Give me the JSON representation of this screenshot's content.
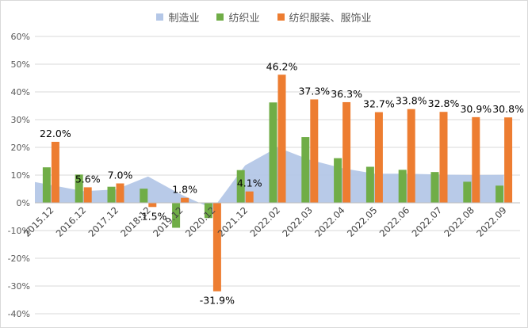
{
  "chart_data": {
    "type": "bar",
    "title": "",
    "xlabel": "",
    "ylabel": "",
    "ylim": [
      -40,
      60
    ],
    "ytick_step": 10,
    "y_unit": "%",
    "grid": true,
    "legend_position": "top",
    "categories": [
      "2015.12",
      "2016.12",
      "2017.12",
      "2018.12",
      "2019.12",
      "2020.12",
      "2021.12",
      "2022.02",
      "2022.03",
      "2022.04",
      "2022.05",
      "2022.06",
      "2022.07",
      "2022.08",
      "2022.09"
    ],
    "series": [
      {
        "name": "制造业",
        "kind": "area",
        "color": "#b4c7e7",
        "values": [
          7.5,
          4.2,
          4.8,
          9.5,
          3.1,
          -2.2,
          13.5,
          20.0,
          15.5,
          12.5,
          10.5,
          10.5,
          10.2,
          10.0,
          10.1
        ]
      },
      {
        "name": "纺织业",
        "kind": "bar",
        "color": "#70ad47",
        "values": [
          12.8,
          10.2,
          5.8,
          5.1,
          -9.0,
          -5.5,
          11.8,
          36.2,
          23.7,
          16.1,
          13.0,
          11.9,
          11.1,
          7.6,
          6.2
        ]
      },
      {
        "name": "纺织服装、服饰业",
        "kind": "bar",
        "color": "#ed7d31",
        "values": [
          22.0,
          5.6,
          7.0,
          -1.5,
          1.8,
          -31.9,
          4.1,
          46.2,
          37.3,
          36.3,
          32.7,
          33.8,
          32.8,
          30.9,
          30.8
        ],
        "data_labels": [
          "22.0%",
          "5.6%",
          "7.0%",
          "-1.5%",
          "1.8%",
          "-31.9%",
          "4.1%",
          "46.2%",
          "37.3%",
          "36.3%",
          "32.7%",
          "33.8%",
          "32.8%",
          "30.9%",
          "30.8%"
        ]
      }
    ]
  }
}
